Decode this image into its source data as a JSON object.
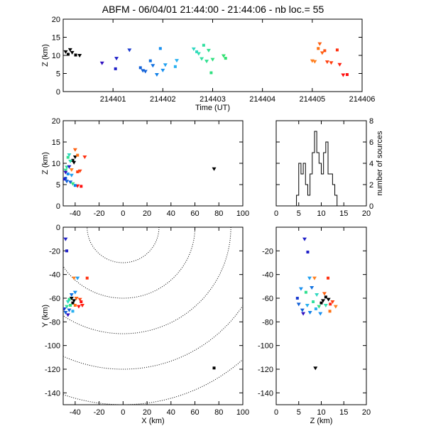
{
  "title": {
    "station": "ABFM",
    "date": "06/04/01",
    "time_range": "21:44:00 - 21:44:06",
    "count_label": "nb loc.=",
    "count": "55"
  },
  "chart_data": [
    {
      "id": "time-height",
      "type": "scatter",
      "xlabel": "Time (UT)",
      "ylabel": "Z (km)",
      "xlim": [
        214400.0,
        214406.0
      ],
      "ylim": [
        0,
        20
      ],
      "xticks": [
        "214401",
        "214402",
        "214403",
        "214404",
        "214405",
        "214406"
      ],
      "yticks": [
        "0",
        "5",
        "10",
        "15",
        "20"
      ],
      "points": [
        {
          "x": 214400.05,
          "y": 11.0,
          "color": "#000000"
        },
        {
          "x": 214400.1,
          "y": 10.3,
          "color": "#000000"
        },
        {
          "x": 214400.14,
          "y": 11.6,
          "color": "#000000"
        },
        {
          "x": 214400.18,
          "y": 10.8,
          "color": "#000000"
        },
        {
          "x": 214400.25,
          "y": 10.1,
          "color": "#000000"
        },
        {
          "x": 214400.33,
          "y": 10.0,
          "color": "#000000"
        },
        {
          "x": 214400.78,
          "y": 7.9,
          "color": "#3010c0"
        },
        {
          "x": 214401.05,
          "y": 6.3,
          "color": "#2020c8"
        },
        {
          "x": 214401.07,
          "y": 9.2,
          "color": "#2020c8"
        },
        {
          "x": 214401.33,
          "y": 11.5,
          "color": "#1a3ad0"
        },
        {
          "x": 214401.55,
          "y": 6.6,
          "color": "#1060d8"
        },
        {
          "x": 214401.6,
          "y": 5.8,
          "color": "#1060d8"
        },
        {
          "x": 214401.65,
          "y": 5.6,
          "color": "#1060d8"
        },
        {
          "x": 214401.75,
          "y": 8.5,
          "color": "#1070e0"
        },
        {
          "x": 214401.8,
          "y": 7.2,
          "color": "#1070e0"
        },
        {
          "x": 214401.88,
          "y": 4.7,
          "color": "#1080e8"
        },
        {
          "x": 214401.95,
          "y": 11.9,
          "color": "#1890f0"
        },
        {
          "x": 214402.0,
          "y": 5.9,
          "color": "#1890f0"
        },
        {
          "x": 214402.05,
          "y": 7.4,
          "color": "#20a0f0"
        },
        {
          "x": 214402.25,
          "y": 6.9,
          "color": "#28b0f0"
        },
        {
          "x": 214402.28,
          "y": 8.6,
          "color": "#28b0f0"
        },
        {
          "x": 214402.62,
          "y": 11.8,
          "color": "#30d8c0"
        },
        {
          "x": 214402.68,
          "y": 11.0,
          "color": "#30d8c0"
        },
        {
          "x": 214402.72,
          "y": 10.5,
          "color": "#30e0b0"
        },
        {
          "x": 214402.78,
          "y": 9.1,
          "color": "#30e0a0"
        },
        {
          "x": 214402.82,
          "y": 12.8,
          "color": "#30e0a0"
        },
        {
          "x": 214402.88,
          "y": 8.4,
          "color": "#30e090"
        },
        {
          "x": 214402.92,
          "y": 11.4,
          "color": "#30e090"
        },
        {
          "x": 214402.97,
          "y": 5.2,
          "color": "#30e080"
        },
        {
          "x": 214403.0,
          "y": 8.9,
          "color": "#30e080"
        },
        {
          "x": 214403.22,
          "y": 9.9,
          "color": "#30e070"
        },
        {
          "x": 214403.26,
          "y": 9.2,
          "color": "#30e070"
        },
        {
          "x": 214405.0,
          "y": 8.5,
          "color": "#ff8020"
        },
        {
          "x": 214405.05,
          "y": 8.3,
          "color": "#ff8020"
        },
        {
          "x": 214405.12,
          "y": 11.9,
          "color": "#ff7010"
        },
        {
          "x": 214405.15,
          "y": 13.2,
          "color": "#ff6010"
        },
        {
          "x": 214405.2,
          "y": 10.7,
          "color": "#ff6010"
        },
        {
          "x": 214405.25,
          "y": 11.3,
          "color": "#ff5010"
        },
        {
          "x": 214405.3,
          "y": 8.2,
          "color": "#ff4010"
        },
        {
          "x": 214405.38,
          "y": 8.0,
          "color": "#ff4010"
        },
        {
          "x": 214405.5,
          "y": 11.5,
          "color": "#ff3010"
        },
        {
          "x": 214405.55,
          "y": 7.5,
          "color": "#ff2010"
        },
        {
          "x": 214405.62,
          "y": 4.6,
          "color": "#ff1010"
        },
        {
          "x": 214405.7,
          "y": 4.7,
          "color": "#ff1010"
        }
      ]
    },
    {
      "id": "x-height",
      "type": "scatter",
      "xlabel": "",
      "ylabel": "Z (km)",
      "xlim": [
        -50,
        100
      ],
      "ylim": [
        0,
        20
      ],
      "xticks": [
        "-40",
        "-20",
        "0",
        "20",
        "40",
        "60",
        "80",
        "100"
      ],
      "yticks": [
        "0",
        "5",
        "10",
        "15",
        "20"
      ],
      "points": [
        {
          "x": -40,
          "y": 11.5,
          "color": "#000000"
        },
        {
          "x": -42,
          "y": 10.7,
          "color": "#000000"
        },
        {
          "x": -41,
          "y": 10.2,
          "color": "#000000"
        },
        {
          "x": -40,
          "y": 13.2,
          "color": "#ff6010"
        },
        {
          "x": -38,
          "y": 11.9,
          "color": "#ff7010"
        },
        {
          "x": -32,
          "y": 11.5,
          "color": "#ff3010"
        },
        {
          "x": -43,
          "y": 8.5,
          "color": "#ff8020"
        },
        {
          "x": -38,
          "y": 8.0,
          "color": "#ff4010"
        },
        {
          "x": -36,
          "y": 8.2,
          "color": "#ff4010"
        },
        {
          "x": -38,
          "y": 4.7,
          "color": "#ff1010"
        },
        {
          "x": -35,
          "y": 4.6,
          "color": "#ff1010"
        },
        {
          "x": -47,
          "y": 9.1,
          "color": "#30e0a0"
        },
        {
          "x": -44,
          "y": 10.5,
          "color": "#30e0b0"
        },
        {
          "x": -46,
          "y": 11.4,
          "color": "#30e090"
        },
        {
          "x": -48,
          "y": 8.4,
          "color": "#30e090"
        },
        {
          "x": -45,
          "y": 12.0,
          "color": "#30d8c0"
        },
        {
          "x": -48,
          "y": 6.5,
          "color": "#1060d8"
        },
        {
          "x": -47,
          "y": 5.8,
          "color": "#1060d8"
        },
        {
          "x": -44,
          "y": 5.6,
          "color": "#1060d8"
        },
        {
          "x": -46,
          "y": 7.5,
          "color": "#1890f0"
        },
        {
          "x": -43,
          "y": 7.2,
          "color": "#20a0f0"
        },
        {
          "x": -42,
          "y": 5.2,
          "color": "#30e080"
        },
        {
          "x": -40,
          "y": 4.8,
          "color": "#1080e8"
        },
        {
          "x": -45,
          "y": 9.2,
          "color": "#2020c8"
        },
        {
          "x": -48,
          "y": 7.9,
          "color": "#3010c0"
        },
        {
          "x": -49,
          "y": 6.3,
          "color": "#2020c8"
        },
        {
          "x": 76,
          "y": 8.7,
          "color": "#000000"
        }
      ]
    },
    {
      "id": "height-histogram",
      "type": "bar",
      "xlabel": "",
      "ylabel": "number of sources",
      "xlim": [
        0,
        20
      ],
      "ylim": [
        0,
        8
      ],
      "xticks": [
        "0",
        "5",
        "10",
        "15",
        "20"
      ],
      "yticks": [
        "0",
        "2",
        "4",
        "6",
        "8"
      ],
      "bin_width": 0.5,
      "bin_start": 4.5,
      "values": [
        1,
        4,
        3,
        4,
        2,
        1,
        3,
        5,
        7,
        5,
        4,
        3,
        5,
        6,
        3,
        3,
        2,
        1,
        0,
        0
      ]
    },
    {
      "id": "plan-view",
      "type": "scatter",
      "xlabel": "X (km)",
      "ylabel": "Y (km)",
      "xlim": [
        -50,
        100
      ],
      "ylim": [
        -150,
        0
      ],
      "xticks": [
        "-40",
        "-20",
        "0",
        "20",
        "40",
        "60",
        "80",
        "100"
      ],
      "yticks": [
        "-140",
        "-120",
        "-100",
        "-80",
        "-60",
        "-40",
        "-20",
        "0"
      ],
      "range_rings_km": [
        30,
        60,
        90,
        120,
        150
      ],
      "points": [
        {
          "x": -48,
          "y": -10,
          "color": "#2020c8"
        },
        {
          "x": -47,
          "y": -20,
          "color": "#2020c8"
        },
        {
          "x": -41,
          "y": -43,
          "color": "#ff8020"
        },
        {
          "x": -38,
          "y": -43,
          "color": "#20a0f0"
        },
        {
          "x": -30,
          "y": -43,
          "color": "#ff3010"
        },
        {
          "x": -40,
          "y": -55,
          "color": "#1890f0"
        },
        {
          "x": -43,
          "y": -57,
          "color": "#1070e0"
        },
        {
          "x": -45,
          "y": -61,
          "color": "#30e090"
        },
        {
          "x": -43,
          "y": -60,
          "color": "#000000"
        },
        {
          "x": -41,
          "y": -62,
          "color": "#000000"
        },
        {
          "x": -42,
          "y": -64,
          "color": "#000000"
        },
        {
          "x": -39,
          "y": -60,
          "color": "#ff6010"
        },
        {
          "x": -36,
          "y": -61,
          "color": "#ff4010"
        },
        {
          "x": -35,
          "y": -63,
          "color": "#ff1010"
        },
        {
          "x": -34,
          "y": -66,
          "color": "#ff2010"
        },
        {
          "x": -37,
          "y": -67,
          "color": "#ff1010"
        },
        {
          "x": -40,
          "y": -66,
          "color": "#ff7010"
        },
        {
          "x": -46,
          "y": -63,
          "color": "#30d8c0"
        },
        {
          "x": -47,
          "y": -67,
          "color": "#30e0a0"
        },
        {
          "x": -44,
          "y": -66,
          "color": "#30e080"
        },
        {
          "x": -45,
          "y": -70,
          "color": "#1060d8"
        },
        {
          "x": -48,
          "y": -72,
          "color": "#1060d8"
        },
        {
          "x": -42,
          "y": -71,
          "color": "#28b0f0"
        },
        {
          "x": -49,
          "y": -69,
          "color": "#1a3ad0"
        },
        {
          "x": -46,
          "y": -74,
          "color": "#3010c0"
        },
        {
          "x": 76,
          "y": -119,
          "color": "#000000"
        }
      ]
    },
    {
      "id": "height-y",
      "type": "scatter",
      "xlabel": "Z (km)",
      "ylabel": "",
      "xlim": [
        0,
        20
      ],
      "ylim": [
        -150,
        0
      ],
      "xticks": [
        "0",
        "5",
        "10",
        "15",
        "20"
      ],
      "yticks": [
        "-140",
        "-120",
        "-100",
        "-80",
        "-60",
        "-40",
        "-20"
      ],
      "points": [
        {
          "x": 6.3,
          "y": -10,
          "color": "#2020c8"
        },
        {
          "x": 7.0,
          "y": -21,
          "color": "#2020c8"
        },
        {
          "x": 8.5,
          "y": -43,
          "color": "#ff8020"
        },
        {
          "x": 7.4,
          "y": -43,
          "color": "#20a0f0"
        },
        {
          "x": 11.5,
          "y": -43,
          "color": "#ff3010"
        },
        {
          "x": 5.5,
          "y": -52,
          "color": "#1890f0"
        },
        {
          "x": 7.9,
          "y": -51,
          "color": "#1070e0"
        },
        {
          "x": 6.6,
          "y": -55,
          "color": "#30e090"
        },
        {
          "x": 9.0,
          "y": -57,
          "color": "#30d8c0"
        },
        {
          "x": 10.7,
          "y": -56,
          "color": "#ff6010"
        },
        {
          "x": 11.0,
          "y": -59,
          "color": "#000000"
        },
        {
          "x": 10.4,
          "y": -62,
          "color": "#000000"
        },
        {
          "x": 11.6,
          "y": -61,
          "color": "#000000"
        },
        {
          "x": 10.0,
          "y": -64,
          "color": "#000000"
        },
        {
          "x": 12.5,
          "y": -63,
          "color": "#ff4010"
        },
        {
          "x": 13.2,
          "y": -67,
          "color": "#ff8020"
        },
        {
          "x": 12.0,
          "y": -65,
          "color": "#ff2010"
        },
        {
          "x": 11.0,
          "y": -66,
          "color": "#30e0b0"
        },
        {
          "x": 9.5,
          "y": -67,
          "color": "#30e080"
        },
        {
          "x": 8.2,
          "y": -63,
          "color": "#30e0a0"
        },
        {
          "x": 6.9,
          "y": -66,
          "color": "#28b0f0"
        },
        {
          "x": 5.0,
          "y": -65,
          "color": "#1060d8"
        },
        {
          "x": 4.7,
          "y": -60,
          "color": "#1a3ad0"
        },
        {
          "x": 5.8,
          "y": -70,
          "color": "#1060d8"
        },
        {
          "x": 7.5,
          "y": -72,
          "color": "#1080e8"
        },
        {
          "x": 8.8,
          "y": -69,
          "color": "#28b0f0"
        },
        {
          "x": 9.8,
          "y": -73,
          "color": "#1890f0"
        },
        {
          "x": 6.0,
          "y": -73,
          "color": "#3010c0"
        },
        {
          "x": 11.9,
          "y": -71,
          "color": "#ff7010"
        },
        {
          "x": 8.7,
          "y": -119,
          "color": "#000000"
        }
      ]
    }
  ]
}
